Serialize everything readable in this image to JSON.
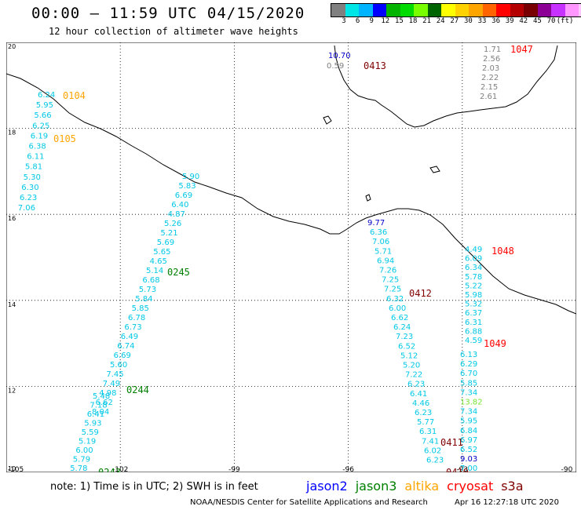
{
  "title": "00:00 — 11:59 UTC 04/15/2020",
  "subtitle": "12 hour collection of altimeter wave heights",
  "colorbar": {
    "colors": [
      "#808080",
      "#00e5e5",
      "#00b4ff",
      "#0000ff",
      "#00b400",
      "#00dc00",
      "#78ff00",
      "#006400",
      "#ffff00",
      "#ffd200",
      "#ffa500",
      "#ff6400",
      "#ff0000",
      "#b40000",
      "#780000",
      "#8c0096",
      "#c832ff",
      "#ff96ff",
      "#ffc8ff",
      "#ff78ff",
      "#b4b4b4",
      "#000000"
    ],
    "ticks": [
      "3",
      "6",
      "9",
      "12",
      "15",
      "18",
      "21",
      "24",
      "27",
      "30",
      "33",
      "36",
      "39",
      "42",
      "45",
      "70",
      "(ft)"
    ]
  },
  "axes": {
    "x_ticks": [
      "-105",
      "-102",
      "-99",
      "-96",
      "-93",
      "-90"
    ],
    "y_ticks": [
      "20",
      "18",
      "16",
      "14",
      "12",
      "10"
    ]
  },
  "passes": [
    {
      "id": "0104",
      "color": "#ffa500",
      "values": [
        "6.24",
        "5.95",
        "5.66",
        "6.25",
        "6.19",
        "6.38",
        "6.11",
        "5.81",
        "5.30",
        "6.30",
        "6.23",
        "7.06"
      ]
    },
    {
      "id": "0105",
      "color": "#ffa500",
      "values": []
    },
    {
      "id": "0245",
      "color": "#008000",
      "values": [
        "5.90",
        "5.83",
        "6.69",
        "6.40",
        "4.87",
        "5.26",
        "5.21",
        "5.69",
        "5.65",
        "4.65",
        "5.14",
        "6.68",
        "5.73",
        "5.84",
        "5.85",
        "6.78",
        "6.73",
        "6.49",
        "6.74",
        "6.69",
        "5.60",
        "7.45",
        "7.49",
        "4.98",
        "6.62",
        "8.04"
      ]
    },
    {
      "id": "0244",
      "color": "#008000",
      "values": [
        "5.48",
        "7.18",
        "6.41",
        "5.93",
        "5.59",
        "5.19",
        "6.00",
        "5.79",
        "5.78",
        "6.66"
      ]
    },
    {
      "id": "0243",
      "color": "#008000",
      "values": []
    },
    {
      "id": "0413",
      "color": "#800000",
      "values": [
        "10.70",
        "0.59"
      ]
    },
    {
      "id": "1047",
      "color": "#ff0000",
      "values": [
        "1.71",
        "2.56",
        "2.03",
        "2.22",
        "2.15",
        "2.61"
      ]
    },
    {
      "id": "0412",
      "color": "#800000",
      "values": [
        "9.77",
        "6.36",
        "7.06",
        "5.71",
        "6.94",
        "7.26",
        "7.25",
        "7.25",
        "6.32",
        "6.00",
        "6.62",
        "6.24",
        "7.23",
        "6.52",
        "5.12",
        "5.20",
        "7.22",
        "6.23",
        "6.41",
        "4.46",
        "6.23",
        "5.77",
        "6.31",
        "7.41",
        "6.02",
        "6.23"
      ]
    },
    {
      "id": "1048",
      "color": "#ff0000",
      "values": [
        "4.49",
        "6.09",
        "6.34",
        "5.78",
        "5.22",
        "5.98",
        "5.32",
        "6.37",
        "6.31",
        "6.88",
        "4.59"
      ]
    },
    {
      "id": "1049",
      "color": "#ff0000",
      "values": [
        "6.13",
        "6.29",
        "6.70",
        "5.85",
        "7.34",
        "13.82",
        "7.34",
        "5.95",
        "6.84",
        "6.97",
        "6.52",
        "9.03",
        "7.00"
      ]
    },
    {
      "id": "0411",
      "color": "#800000",
      "values": []
    },
    {
      "id": "0410",
      "color": "#800000",
      "values": []
    }
  ],
  "note": "note: 1) Time is in UTC; 2) SWH is in feet",
  "legend": [
    {
      "label": "jason2",
      "color": "#0000ff"
    },
    {
      "label": "jason3",
      "color": "#008000"
    },
    {
      "label": "altika",
      "color": "#ffa500"
    },
    {
      "label": "cryosat",
      "color": "#ff0000"
    },
    {
      "label": "s3a",
      "color": "#800000"
    }
  ],
  "credit": "NOAA/NESDIS Center for Satellite Applications and Research",
  "timestamp": "Apr 16 12:27:18 UTC 2020"
}
